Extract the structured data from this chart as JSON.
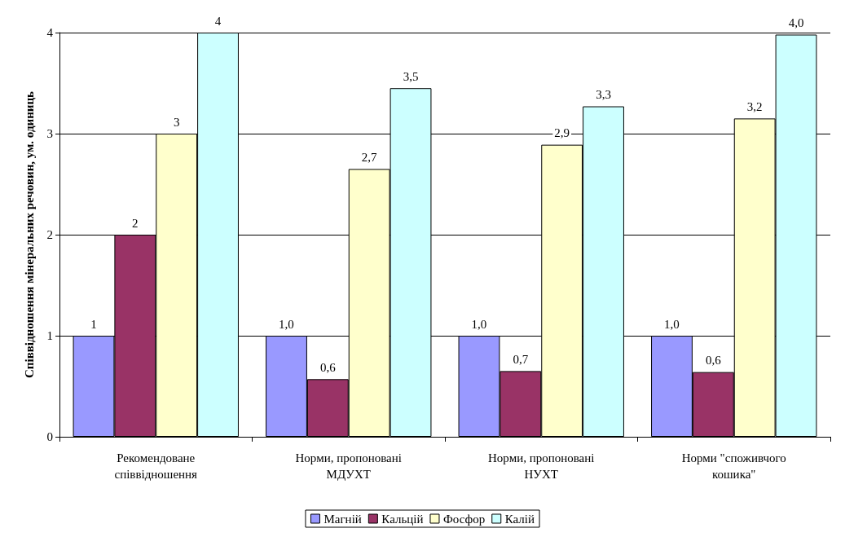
{
  "chart_data": {
    "type": "bar",
    "ylabel": "Співвідношення мінеральних речовин, ум. одиниць",
    "categories": [
      "Рекомендоване\nспіввідношення",
      "Норми, пропоновані\nМДУХТ",
      "Норми, пропоновані\nНУХТ",
      "Норми \"споживчого\nкошика\""
    ],
    "series": [
      {
        "name": "Магній",
        "color": "#9999ff",
        "values": [
          1,
          1,
          1,
          1
        ],
        "value_labels": [
          "1",
          "1,0",
          "1,0",
          "1,0"
        ]
      },
      {
        "name": "Кальцій",
        "color": "#993366",
        "values": [
          2,
          0.57,
          0.65,
          0.64
        ],
        "value_labels": [
          "2",
          "0,6",
          "0,7",
          "0,6"
        ]
      },
      {
        "name": "Фосфор",
        "color": "#ffffcc",
        "values": [
          3,
          2.65,
          2.89,
          3.15
        ],
        "value_labels": [
          "3",
          "2,7",
          "2,9",
          "3,2"
        ]
      },
      {
        "name": "Калій",
        "color": "#ccffff",
        "values": [
          4,
          3.45,
          3.27,
          3.98
        ],
        "value_labels": [
          "4",
          "3,5",
          "3,3",
          "4,0"
        ]
      }
    ],
    "ylim": [
      0,
      4
    ],
    "yticks": [
      0,
      1,
      2,
      3,
      4
    ],
    "grid": "y",
    "legend": "bottom"
  }
}
